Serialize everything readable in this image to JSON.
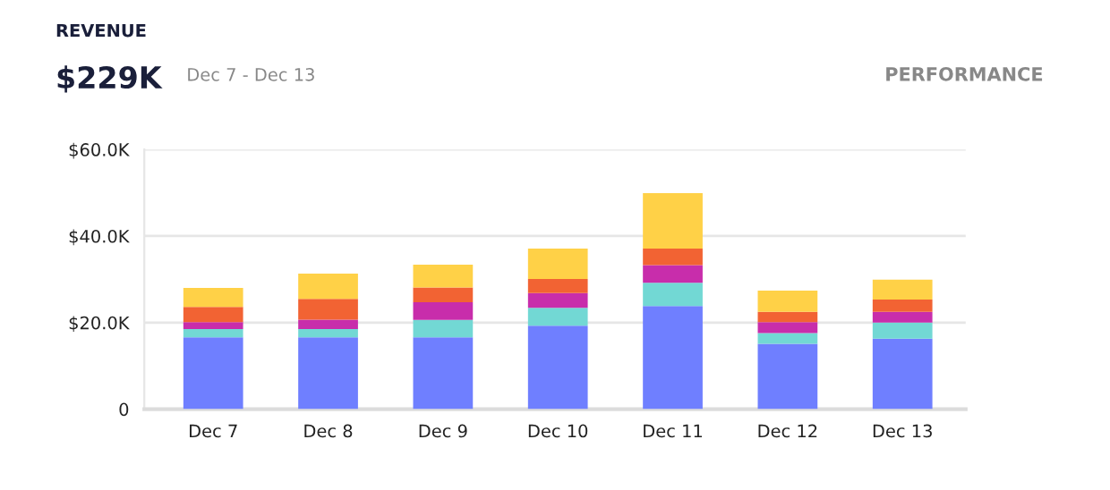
{
  "chart_data": {
    "type": "bar",
    "stacked": true,
    "title": "REVENUE",
    "subtitle": "$229K",
    "annotations": [
      "Dec 7 - Dec 13",
      "PERFORMANCE"
    ],
    "categories": [
      "Dec 7",
      "Dec 8",
      "Dec 9",
      "Dec 10",
      "Dec 11",
      "Dec 12",
      "Dec 13"
    ],
    "series": [
      {
        "color": "#6f7fff",
        "values": [
          16.6,
          16.6,
          16.6,
          19.3,
          23.8,
          15.1,
          16.3
        ]
      },
      {
        "color": "#72d8d4",
        "values": [
          1.9,
          1.9,
          4.0,
          4.1,
          5.4,
          2.5,
          3.7
        ]
      },
      {
        "color": "#c82dab",
        "values": [
          1.6,
          2.2,
          4.1,
          3.4,
          4.1,
          2.5,
          2.5
        ]
      },
      {
        "color": "#f26333",
        "values": [
          3.5,
          4.8,
          3.4,
          3.3,
          3.8,
          2.4,
          2.8
        ]
      },
      {
        "color": "#ffd147",
        "values": [
          4.4,
          5.8,
          5.3,
          7.0,
          12.8,
          4.9,
          4.6
        ]
      }
    ],
    "ylim": [
      0,
      60
    ],
    "yticks": [
      0,
      {
        "value": 20,
        "label": "$20.0K"
      },
      {
        "value": 40,
        "label": "$40.0K"
      },
      {
        "value": 60,
        "label": "$60.0K"
      }
    ],
    "grid": "y"
  }
}
